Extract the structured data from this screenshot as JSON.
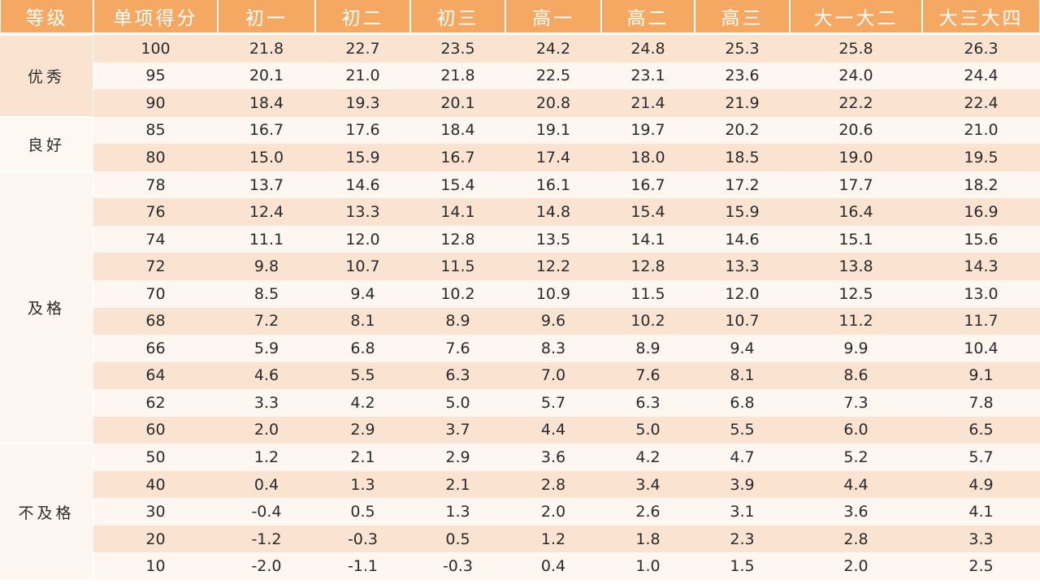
{
  "table": {
    "header": [
      "等级",
      "单项得分",
      "初一",
      "初二",
      "初三",
      "高一",
      "高二",
      "高三",
      "大一大二",
      "大三大四"
    ],
    "groups": [
      {
        "grade": "优秀",
        "rows": [
          [
            "100",
            "21.8",
            "22.7",
            "23.5",
            "24.2",
            "24.8",
            "25.3",
            "25.8",
            "26.3"
          ],
          [
            "95",
            "20.1",
            "21.0",
            "21.8",
            "22.5",
            "23.1",
            "23.6",
            "24.0",
            "24.4"
          ],
          [
            "90",
            "18.4",
            "19.3",
            "20.1",
            "20.8",
            "21.4",
            "21.9",
            "22.2",
            "22.4"
          ]
        ]
      },
      {
        "grade": "良好",
        "rows": [
          [
            "85",
            "16.7",
            "17.6",
            "18.4",
            "19.1",
            "19.7",
            "20.2",
            "20.6",
            "21.0"
          ],
          [
            "80",
            "15.0",
            "15.9",
            "16.7",
            "17.4",
            "18.0",
            "18.5",
            "19.0",
            "19.5"
          ]
        ]
      },
      {
        "grade": "及格",
        "rows": [
          [
            "78",
            "13.7",
            "14.6",
            "15.4",
            "16.1",
            "16.7",
            "17.2",
            "17.7",
            "18.2"
          ],
          [
            "76",
            "12.4",
            "13.3",
            "14.1",
            "14.8",
            "15.4",
            "15.9",
            "16.4",
            "16.9"
          ],
          [
            "74",
            "11.1",
            "12.0",
            "12.8",
            "13.5",
            "14.1",
            "14.6",
            "15.1",
            "15.6"
          ],
          [
            "72",
            "9.8",
            "10.7",
            "11.5",
            "12.2",
            "12.8",
            "13.3",
            "13.8",
            "14.3"
          ],
          [
            "70",
            "8.5",
            "9.4",
            "10.2",
            "10.9",
            "11.5",
            "12.0",
            "12.5",
            "13.0"
          ],
          [
            "68",
            "7.2",
            "8.1",
            "8.9",
            "9.6",
            "10.2",
            "10.7",
            "11.2",
            "11.7"
          ],
          [
            "66",
            "5.9",
            "6.8",
            "7.6",
            "8.3",
            "8.9",
            "9.4",
            "9.9",
            "10.4"
          ],
          [
            "64",
            "4.6",
            "5.5",
            "6.3",
            "7.0",
            "7.6",
            "8.1",
            "8.6",
            "9.1"
          ],
          [
            "62",
            "3.3",
            "4.2",
            "5.0",
            "5.7",
            "6.3",
            "6.8",
            "7.3",
            "7.8"
          ],
          [
            "60",
            "2.0",
            "2.9",
            "3.7",
            "4.4",
            "5.0",
            "5.5",
            "6.0",
            "6.5"
          ]
        ]
      },
      {
        "grade": "不及格",
        "rows": [
          [
            "50",
            "1.2",
            "2.1",
            "2.9",
            "3.6",
            "4.2",
            "4.7",
            "5.2",
            "5.7"
          ],
          [
            "40",
            "0.4",
            "1.3",
            "2.1",
            "2.8",
            "3.4",
            "3.9",
            "4.4",
            "4.9"
          ],
          [
            "30",
            "-0.4",
            "0.5",
            "1.3",
            "2.0",
            "2.6",
            "3.1",
            "3.6",
            "4.1"
          ],
          [
            "20",
            "-1.2",
            "-0.3",
            "0.5",
            "1.2",
            "1.8",
            "2.3",
            "2.8",
            "3.3"
          ],
          [
            "10",
            "-2.0",
            "-1.1",
            "-0.3",
            "0.4",
            "1.0",
            "1.5",
            "2.0",
            "2.5"
          ]
        ]
      }
    ]
  }
}
